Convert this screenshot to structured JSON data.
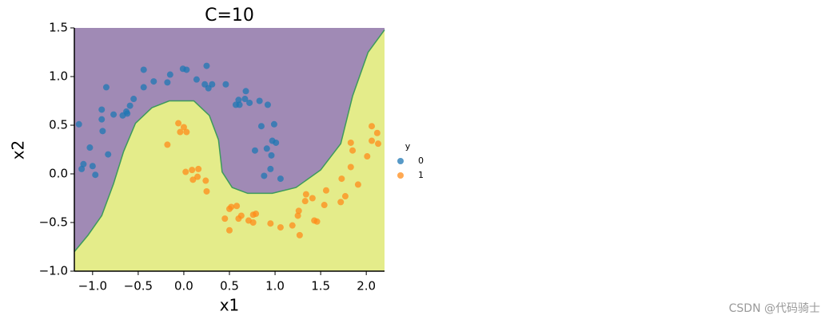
{
  "chart_data": {
    "type": "scatter",
    "title": "C=10",
    "x_label": "x1",
    "y_label": "x2",
    "legend_title": "y",
    "legend_position": "right",
    "marker_alpha": 0.75,
    "xlim": [
      -1.2,
      2.2
    ],
    "ylim": [
      -1.0,
      1.5
    ],
    "xticks": [
      {
        "value": -1,
        "label": "−1.0"
      },
      {
        "value": -0.5,
        "label": "−0.5"
      },
      {
        "value": 0,
        "label": "0.0"
      },
      0.5,
      {
        "value": 1,
        "label": "1.0"
      },
      1.5,
      {
        "value": 2,
        "label": "2.0"
      }
    ],
    "yticks": [
      {
        "value": -1,
        "label": "−1.0"
      },
      {
        "value": -0.5,
        "label": "−0.5"
      },
      {
        "value": 0,
        "label": "0.0"
      },
      0.5,
      {
        "value": 1,
        "label": "1.0"
      },
      1.5
    ],
    "decision_boundary": {
      "upper_color": "#a08ab5",
      "lower_color": "#e4ec8a",
      "line_color": "#3d9a5c",
      "x": [
        -1.2,
        -1.05,
        -0.9,
        -0.77,
        -0.66,
        -0.53,
        -0.35,
        -0.16,
        0.11,
        0.28,
        0.38,
        0.42,
        0.53,
        0.7,
        0.97,
        1.23,
        1.5,
        1.72,
        1.85,
        2.02,
        2.2
      ],
      "y": [
        -0.8,
        -0.63,
        -0.43,
        -0.1,
        0.23,
        0.52,
        0.68,
        0.75,
        0.75,
        0.6,
        0.35,
        0.02,
        -0.14,
        -0.2,
        -0.2,
        -0.14,
        0.04,
        0.31,
        0.8,
        1.25,
        1.48
      ]
    },
    "series": [
      {
        "name": "0",
        "color": "#1f77b4",
        "x": [
          -1.15,
          -1.1,
          -1.12,
          -1.0,
          -0.97,
          -1.03,
          -0.9,
          -0.9,
          -0.89,
          -0.85,
          -0.83,
          -0.77,
          -0.67,
          -0.63,
          -0.62,
          -0.59,
          -0.55,
          -0.44,
          -0.44,
          -0.33,
          -0.18,
          -0.15,
          -0.01,
          0.03,
          0.14,
          0.23,
          0.25,
          0.27,
          0.31,
          0.46,
          0.57,
          0.6,
          0.61,
          0.67,
          0.68,
          0.72,
          0.83,
          0.92,
          0.85,
          0.99,
          0.78,
          0.91,
          0.97,
          1.01,
          0.88,
          0.95,
          1.06,
          0.96
        ],
        "y": [
          0.51,
          0.1,
          0.05,
          0.08,
          -0.01,
          0.27,
          0.56,
          0.66,
          0.44,
          0.89,
          0.2,
          0.61,
          0.6,
          0.64,
          0.62,
          0.7,
          0.77,
          1.07,
          0.89,
          0.95,
          0.94,
          1.02,
          1.08,
          1.07,
          0.97,
          0.92,
          1.11,
          0.88,
          0.92,
          0.92,
          0.71,
          0.76,
          0.71,
          0.77,
          0.85,
          0.73,
          0.75,
          0.71,
          0.49,
          0.51,
          0.24,
          0.26,
          0.34,
          0.32,
          -0.02,
          0.05,
          -0.05,
          0.19
        ]
      },
      {
        "name": "1",
        "color": "#ff8c1a",
        "x": [
          -0.18,
          -0.06,
          0.0,
          0.03,
          -0.04,
          0.02,
          0.09,
          0.1,
          0.16,
          0.15,
          0.24,
          0.25,
          0.45,
          0.5,
          0.52,
          0.5,
          0.58,
          0.6,
          0.63,
          0.71,
          0.76,
          0.76,
          0.79,
          0.95,
          1.06,
          1.19,
          1.25,
          1.26,
          1.27,
          1.33,
          1.34,
          1.41,
          1.43,
          1.46,
          1.54,
          1.56,
          1.73,
          1.72,
          1.77,
          1.83,
          1.83,
          1.85,
          1.91,
          2.01,
          2.06,
          2.12,
          2.06,
          2.13
        ],
        "y": [
          0.3,
          0.52,
          0.48,
          0.43,
          0.43,
          0.02,
          0.04,
          -0.06,
          0.05,
          -0.03,
          -0.07,
          -0.18,
          -0.46,
          -0.36,
          -0.34,
          -0.58,
          -0.33,
          -0.46,
          -0.43,
          -0.48,
          -0.5,
          -0.42,
          -0.41,
          -0.51,
          -0.55,
          -0.53,
          -0.43,
          -0.38,
          -0.63,
          -0.28,
          -0.21,
          -0.25,
          -0.48,
          -0.49,
          -0.32,
          -0.17,
          -0.05,
          -0.29,
          -0.23,
          0.07,
          0.32,
          0.24,
          -0.11,
          0.18,
          0.49,
          0.42,
          0.34,
          0.31
        ]
      }
    ]
  },
  "watermark": "CSDN @代码骑士"
}
